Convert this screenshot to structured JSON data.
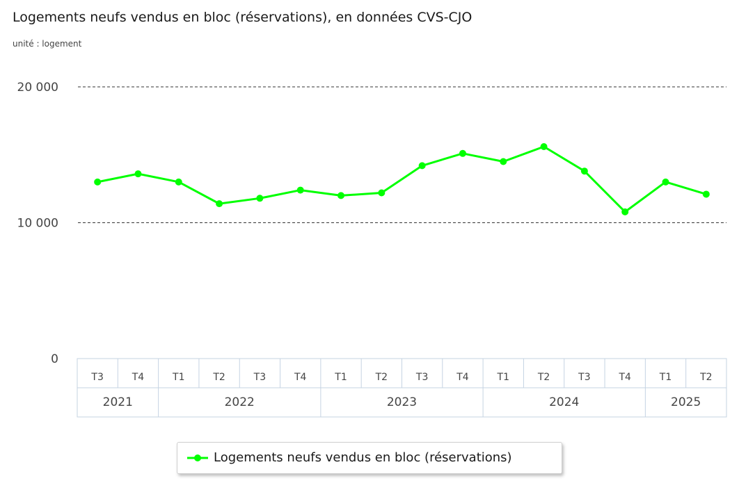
{
  "title": "Logements neufs vendus en bloc (réservations), en données CVS-CJO",
  "unit": "unité : logement",
  "chart_data": {
    "type": "line",
    "title": "Logements neufs vendus en bloc (réservations), en données CVS-CJO",
    "subtitle": "unité : logement",
    "quarters": [
      "T3",
      "T4",
      "T1",
      "T2",
      "T3",
      "T4",
      "T1",
      "T2",
      "T3",
      "T4",
      "T1",
      "T2",
      "T3",
      "T4",
      "T1",
      "T2"
    ],
    "years": [
      {
        "label": "2021",
        "span": 2
      },
      {
        "label": "2022",
        "span": 4
      },
      {
        "label": "2023",
        "span": 4
      },
      {
        "label": "2024",
        "span": 4
      },
      {
        "label": "2025",
        "span": 2
      }
    ],
    "series": [
      {
        "name": "Logements neufs vendus en bloc (réservations)",
        "color": "#00ff00",
        "values": [
          13000,
          13600,
          13000,
          11400,
          11800,
          12400,
          12000,
          12200,
          14200,
          15100,
          14500,
          15600,
          13800,
          10800,
          13000,
          12100
        ]
      }
    ],
    "ylim": [
      0,
      20000
    ],
    "yticks": [
      0,
      10000,
      20000
    ],
    "ytick_labels": [
      "0",
      "10 000",
      "20 000"
    ],
    "grid": true,
    "legend": "bottom-center"
  }
}
